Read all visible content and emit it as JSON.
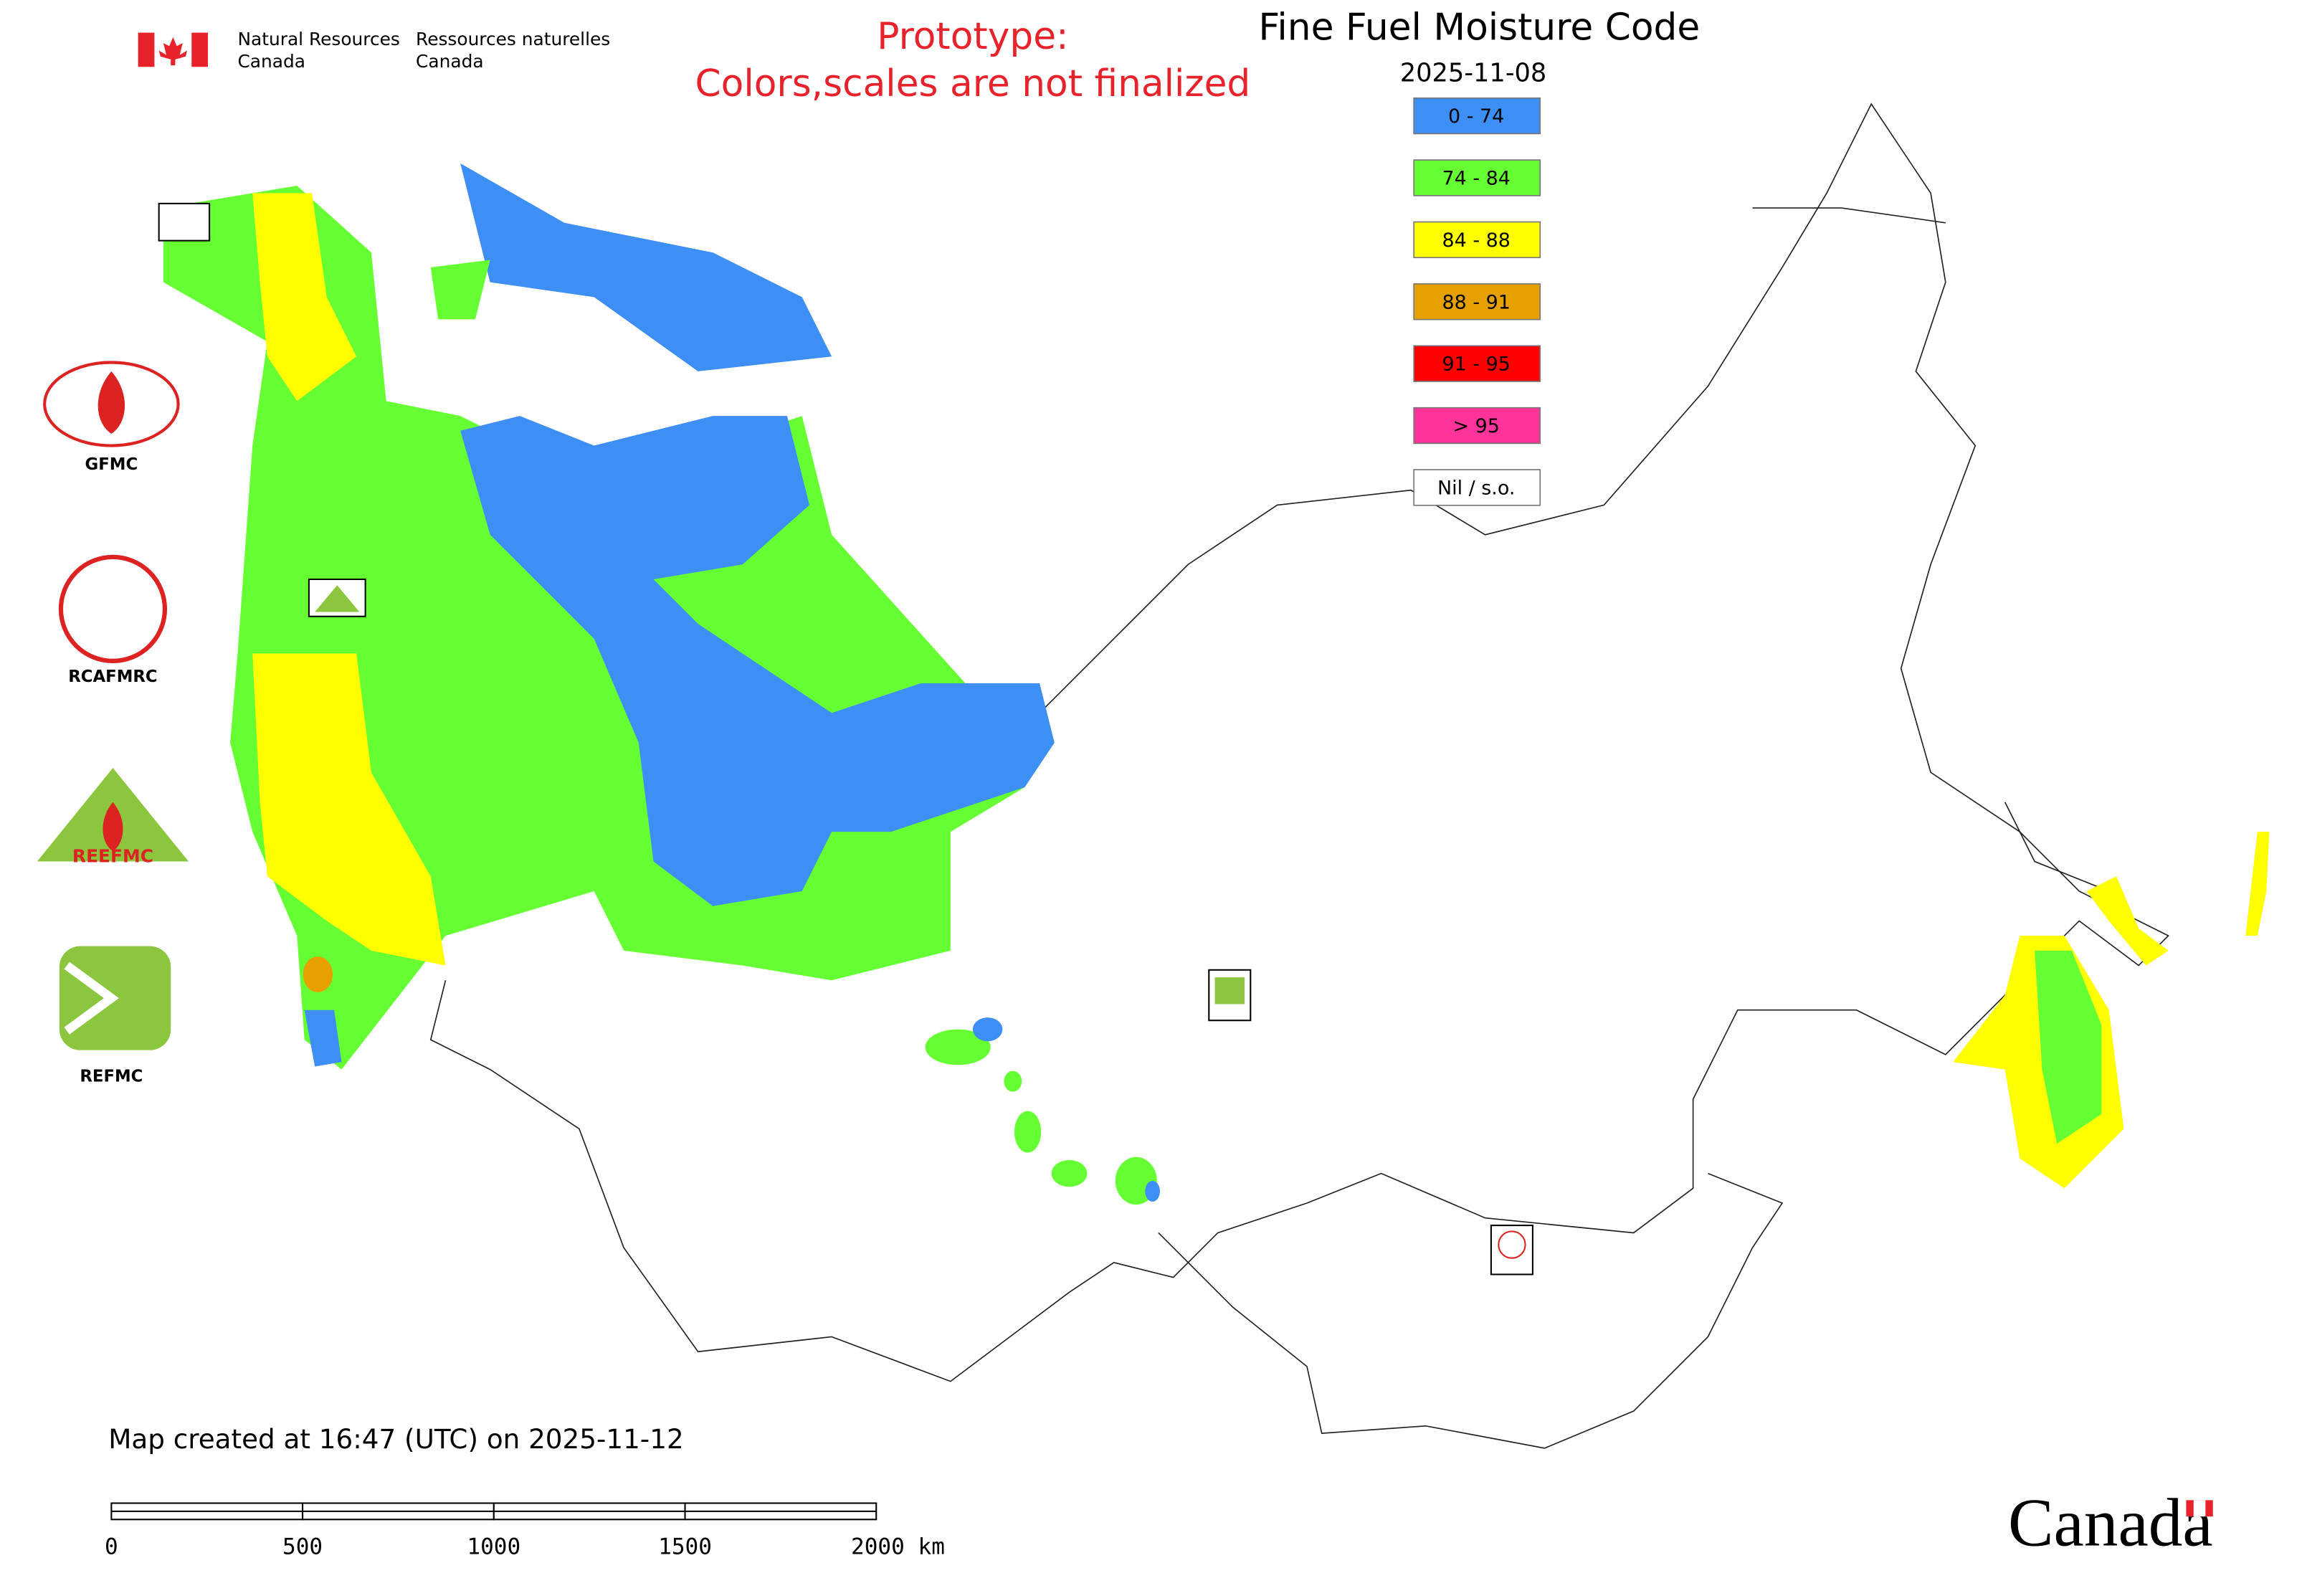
{
  "header": {
    "dept_en": [
      "Natural Resources",
      "Canada"
    ],
    "dept_fr": [
      "Ressources naturelles",
      "Canada"
    ]
  },
  "notice": [
    "Prototype:",
    "Colors,scales are not finalized"
  ],
  "title": "Fine Fuel Moisture Code",
  "date": "2025-11-08",
  "legend": [
    {
      "label": "0 - 74",
      "color": "#3d8ff5"
    },
    {
      "label": "74 - 84",
      "color": "#66ff33"
    },
    {
      "label": "84 - 88",
      "color": "#ffff00"
    },
    {
      "label": "88 - 91",
      "color": "#e6a100"
    },
    {
      "label": "91 - 95",
      "color": "#ff0000"
    },
    {
      "label": "> 95",
      "color": "#ff3399"
    },
    {
      "label": "Nil / s.o.",
      "color": "#ffffff"
    }
  ],
  "logos": [
    "GFMC",
    "RCAFMRC",
    "REEFMC",
    "REFMC"
  ],
  "footer": "Map created at 16:47 (UTC) on 2025-11-12",
  "scale_labels": [
    "0",
    "500",
    "1000",
    "1500",
    "2000 km"
  ],
  "wordmark": "Canada"
}
